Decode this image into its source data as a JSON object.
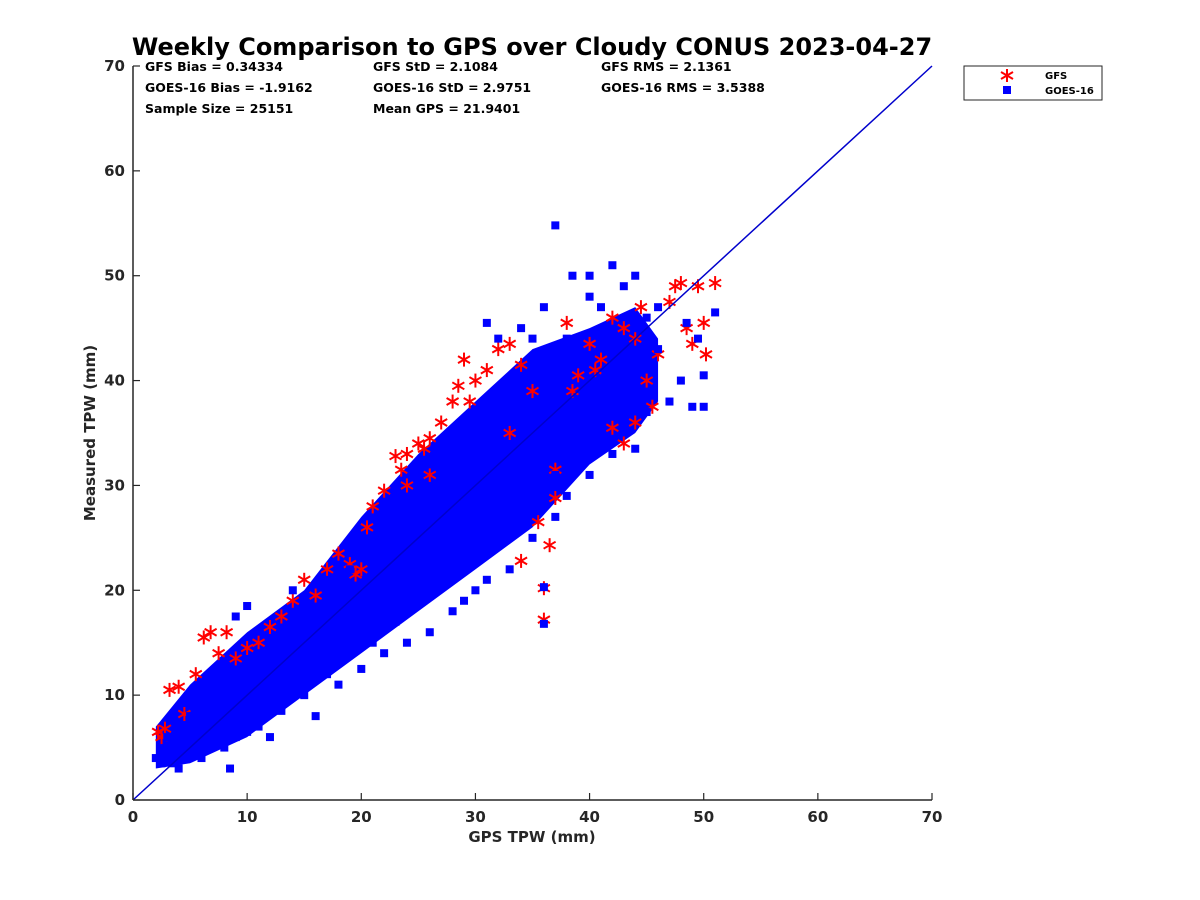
{
  "chart_data": {
    "type": "scatter",
    "title": "Weekly Comparison to GPS over Cloudy CONUS 2023-04-27",
    "xlabel": "GPS TPW (mm)",
    "ylabel": "Measured TPW (mm)",
    "xlim": [
      0,
      70
    ],
    "ylim": [
      0,
      70
    ],
    "x_ticks": [
      "0",
      "10",
      "20",
      "30",
      "40",
      "50",
      "60",
      "70"
    ],
    "y_ticks": [
      "0",
      "10",
      "20",
      "30",
      "40",
      "50",
      "60",
      "70"
    ],
    "grid": false,
    "legend_position": "outside top-right",
    "stats": [
      [
        "GFS Bias = 0.34334",
        "GFS StD = 2.1084",
        "GFS RMS = 2.1361"
      ],
      [
        "GOES-16 Bias = -1.9162",
        "GOES-16 StD = 2.9751",
        "GOES-16 RMS = 3.5388"
      ],
      [
        "Sample Size = 25151",
        "Mean GPS = 21.9401",
        ""
      ]
    ],
    "reference_line": {
      "from": [
        0,
        0
      ],
      "to": [
        70,
        70
      ],
      "color": "#0000cc"
    },
    "series": [
      {
        "name": "GFS",
        "marker": "asterisk",
        "color": "#ff0000",
        "points": [
          [
            2.2,
            6.5
          ],
          [
            2.5,
            6.0
          ],
          [
            2.8,
            6.8
          ],
          [
            3.2,
            10.5
          ],
          [
            4.0,
            10.8
          ],
          [
            4.5,
            8.2
          ],
          [
            5.5,
            12.0
          ],
          [
            6.2,
            15.5
          ],
          [
            6.8,
            16.0
          ],
          [
            7.5,
            14.0
          ],
          [
            8.2,
            16.0
          ],
          [
            9.0,
            13.5
          ],
          [
            10.0,
            14.5
          ],
          [
            11.0,
            15.0
          ],
          [
            12.0,
            16.5
          ],
          [
            13.0,
            17.5
          ],
          [
            14.0,
            19.0
          ],
          [
            15.0,
            21.0
          ],
          [
            16.0,
            19.5
          ],
          [
            17.0,
            22.0
          ],
          [
            18.0,
            23.5
          ],
          [
            19.0,
            22.5
          ],
          [
            19.5,
            21.5
          ],
          [
            20.5,
            26.0
          ],
          [
            21.0,
            28.0
          ],
          [
            22.0,
            29.5
          ],
          [
            23.0,
            32.8
          ],
          [
            23.5,
            31.5
          ],
          [
            24.0,
            33.0
          ],
          [
            25.0,
            34.0
          ],
          [
            25.5,
            33.5
          ],
          [
            26.0,
            34.5
          ],
          [
            27.0,
            36.0
          ],
          [
            28.0,
            38.0
          ],
          [
            28.5,
            39.5
          ],
          [
            29.0,
            42.0
          ],
          [
            29.5,
            38.0
          ],
          [
            30.0,
            40.0
          ],
          [
            31.0,
            41.0
          ],
          [
            32.0,
            43.0
          ],
          [
            33.0,
            43.5
          ],
          [
            34.0,
            41.5
          ],
          [
            35.0,
            39.0
          ],
          [
            34.0,
            22.8
          ],
          [
            35.5,
            26.5
          ],
          [
            36.5,
            24.3
          ],
          [
            36.0,
            20.2
          ],
          [
            36.0,
            17.2
          ],
          [
            37.0,
            28.8
          ],
          [
            38.0,
            45.5
          ],
          [
            39.0,
            40.5
          ],
          [
            40.0,
            43.5
          ],
          [
            41.0,
            42.0
          ],
          [
            42.0,
            46.0
          ],
          [
            43.0,
            45.0
          ],
          [
            44.0,
            44.0
          ],
          [
            44.5,
            47.0
          ],
          [
            45.0,
            40.0
          ],
          [
            45.5,
            37.5
          ],
          [
            46.0,
            42.5
          ],
          [
            47.0,
            47.5
          ],
          [
            47.5,
            49.0
          ],
          [
            48.0,
            49.3
          ],
          [
            48.5,
            45.0
          ],
          [
            49.0,
            43.5
          ],
          [
            49.5,
            49.0
          ],
          [
            50.0,
            45.5
          ],
          [
            50.2,
            42.5
          ],
          [
            51.0,
            49.3
          ],
          [
            44.0,
            36.0
          ],
          [
            43.0,
            34.0
          ],
          [
            42.0,
            35.5
          ],
          [
            37.0,
            31.5
          ],
          [
            20.0,
            22.0
          ],
          [
            24.0,
            30.0
          ],
          [
            26.0,
            31.0
          ],
          [
            33.0,
            35.0
          ],
          [
            38.5,
            39.0
          ],
          [
            40.5,
            41.0
          ]
        ]
      },
      {
        "name": "GOES-16",
        "marker": "square",
        "color": "#0000ff",
        "points": [
          [
            2.0,
            4.0
          ],
          [
            2.5,
            3.5
          ],
          [
            3.0,
            5.0
          ],
          [
            3.5,
            3.5
          ],
          [
            4.0,
            3.0
          ],
          [
            5.0,
            4.5
          ],
          [
            6.0,
            4.0
          ],
          [
            7.0,
            5.5
          ],
          [
            8.0,
            5.0
          ],
          [
            8.5,
            3.0
          ],
          [
            9.0,
            6.0
          ],
          [
            10.0,
            6.5
          ],
          [
            11.0,
            7.0
          ],
          [
            12.0,
            6.0
          ],
          [
            13.0,
            8.5
          ],
          [
            15.0,
            10.0
          ],
          [
            16.0,
            8.0
          ],
          [
            18.0,
            11.0
          ],
          [
            20.0,
            12.5
          ],
          [
            22.0,
            14.0
          ],
          [
            24.0,
            15.0
          ],
          [
            26.0,
            16.0
          ],
          [
            28.0,
            18.0
          ],
          [
            29.0,
            19.0
          ],
          [
            30.0,
            20.0
          ],
          [
            31.0,
            21.0
          ],
          [
            33.0,
            22.0
          ],
          [
            35.0,
            25.0
          ],
          [
            36.0,
            20.3
          ],
          [
            36.0,
            16.8
          ],
          [
            37.0,
            27.0
          ],
          [
            38.0,
            29.0
          ],
          [
            40.0,
            31.0
          ],
          [
            42.0,
            33.0
          ],
          [
            44.0,
            33.5
          ],
          [
            45.0,
            37.0
          ],
          [
            47.0,
            38.0
          ],
          [
            48.0,
            40.0
          ],
          [
            49.0,
            37.5
          ],
          [
            50.0,
            40.5
          ],
          [
            50.0,
            37.5
          ],
          [
            51.0,
            46.5
          ],
          [
            49.5,
            44.0
          ],
          [
            48.5,
            45.5
          ],
          [
            37.0,
            54.8
          ],
          [
            38.5,
            50.0
          ],
          [
            40.0,
            50.0
          ],
          [
            42.0,
            51.0
          ],
          [
            40.0,
            48.0
          ],
          [
            44.0,
            50.0
          ],
          [
            45.0,
            46.0
          ],
          [
            31.0,
            45.5
          ],
          [
            32.0,
            44.0
          ],
          [
            33.0,
            40.0
          ],
          [
            34.0,
            45.0
          ],
          [
            35.0,
            44.0
          ],
          [
            36.0,
            47.0
          ],
          [
            38.0,
            44.0
          ],
          [
            41.0,
            47.0
          ],
          [
            43.0,
            49.0
          ],
          [
            46.0,
            43.0
          ],
          [
            44.0,
            40.0
          ],
          [
            43.0,
            38.0
          ],
          [
            39.0,
            42.0
          ],
          [
            30.0,
            37.0
          ],
          [
            28.0,
            35.0
          ],
          [
            26.0,
            32.0
          ],
          [
            24.0,
            28.0
          ],
          [
            22.0,
            26.0
          ],
          [
            21.0,
            25.0
          ],
          [
            19.0,
            22.0
          ],
          [
            17.0,
            20.0
          ],
          [
            15.0,
            17.0
          ],
          [
            13.0,
            16.0
          ],
          [
            11.0,
            14.0
          ],
          [
            9.0,
            12.0
          ],
          [
            7.0,
            10.0
          ],
          [
            5.0,
            8.0
          ],
          [
            4.0,
            6.0
          ],
          [
            10.0,
            18.5
          ],
          [
            9.0,
            17.5
          ],
          [
            14.0,
            20.0
          ],
          [
            17.0,
            21.0
          ],
          [
            20.0,
            24.0
          ],
          [
            25.0,
            30.0
          ],
          [
            27.0,
            33.0
          ],
          [
            29.0,
            36.0
          ],
          [
            32.0,
            38.0
          ],
          [
            34.0,
            40.0
          ],
          [
            36.0,
            42.0
          ],
          [
            38.0,
            40.0
          ],
          [
            40.0,
            39.0
          ],
          [
            42.0,
            43.0
          ],
          [
            44.0,
            45.0
          ],
          [
            46.0,
            47.0
          ],
          [
            41.0,
            35.0
          ],
          [
            39.0,
            33.0
          ],
          [
            37.0,
            31.0
          ],
          [
            35.0,
            29.0
          ],
          [
            33.0,
            27.0
          ],
          [
            31.0,
            25.0
          ],
          [
            29.0,
            23.0
          ],
          [
            27.0,
            21.0
          ],
          [
            25.0,
            19.0
          ],
          [
            23.0,
            17.0
          ],
          [
            21.0,
            15.0
          ],
          [
            19.0,
            14.0
          ],
          [
            17.0,
            12.0
          ],
          [
            15.0,
            11.0
          ],
          [
            13.0,
            9.0
          ],
          [
            11.0,
            8.0
          ],
          [
            9.0,
            7.0
          ],
          [
            7.0,
            6.0
          ],
          [
            6.0,
            5.0
          ],
          [
            33.5,
            30.0
          ],
          [
            30.5,
            28.0
          ],
          [
            28.5,
            26.0
          ],
          [
            26.5,
            24.0
          ],
          [
            24.5,
            22.0
          ],
          [
            22.5,
            20.0
          ],
          [
            20.5,
            18.0
          ],
          [
            18.5,
            16.0
          ],
          [
            16.5,
            14.0
          ],
          [
            14.5,
            12.0
          ],
          [
            12.5,
            11.0
          ],
          [
            10.5,
            10.0
          ],
          [
            8.5,
            9.0
          ],
          [
            6.5,
            8.0
          ],
          [
            4.5,
            7.0
          ],
          [
            3.0,
            6.0
          ]
        ]
      }
    ]
  }
}
